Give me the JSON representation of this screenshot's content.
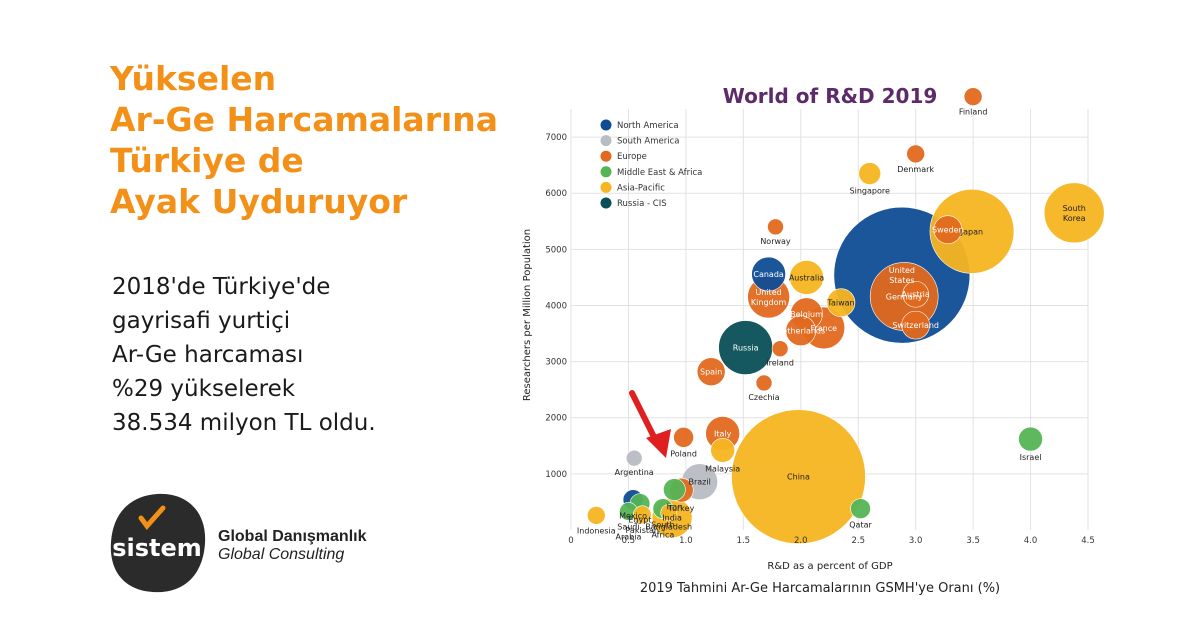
{
  "headline": {
    "lines": [
      "Yükselen",
      "Ar-Ge Harcamalarına",
      "Türkiye de",
      "Ayak Uyduruyor"
    ]
  },
  "body": {
    "lines": [
      "2018'de Türkiye'de",
      "gayrisafi yurtiçi",
      "Ar-Ge harcaması",
      "%29 yükselerek",
      "38.534 milyon TL oldu."
    ]
  },
  "logo": {
    "wordmark": "sistem",
    "name": "Global Danışmanlık",
    "tagline": "Global Consulting"
  },
  "colors": {
    "accent": "#f39018",
    "north_america": "#0f4c95",
    "south_america": "#b8bcc3",
    "europe": "#e2691e",
    "middle_east_africa": "#55b455",
    "asia_pacific": "#f7b521",
    "russia_cis": "#0a4f57"
  },
  "chart_data": {
    "type": "scatter",
    "title": "World of R&D 2019",
    "xlabel": "R&D as a percent of GDP",
    "ylabel": "Researchers per Million Population",
    "caption": "2019 Tahmini Ar-Ge Harcamalarının GSMH'ye Oranı (%)",
    "xlim": [
      0,
      4.5
    ],
    "ylim": [
      0,
      7500
    ],
    "x_ticks": [
      "0",
      "0.5",
      "1.0",
      "1.5",
      "2.0",
      "2.5",
      "3.0",
      "3.5",
      "4.0",
      "4.5"
    ],
    "y_ticks": [
      "1000",
      "2000",
      "3000",
      "4000",
      "5000",
      "6000",
      "7000"
    ],
    "legend_position": "top-left",
    "grid": true,
    "legend": [
      {
        "name": "North America",
        "color": "#0f4c95"
      },
      {
        "name": "South America",
        "color": "#b8bcc3"
      },
      {
        "name": "Europe",
        "color": "#e2691e"
      },
      {
        "name": "Middle East & Africa",
        "color": "#55b455"
      },
      {
        "name": "Asia-Pacific",
        "color": "#f7b521"
      },
      {
        "name": "Russia - CIS",
        "color": "#0a4f57"
      }
    ],
    "points": [
      {
        "label": "China",
        "x": 1.98,
        "y": 950,
        "r": 67,
        "color": "#f7b521"
      },
      {
        "label": "United States",
        "x": 2.88,
        "y": 4540,
        "r": 68,
        "color": "#0f4c95"
      },
      {
        "label": "Japan",
        "x": 3.49,
        "y": 5320,
        "r": 42,
        "color": "#f7b521"
      },
      {
        "label": "Germany",
        "x": 2.9,
        "y": 4160,
        "r": 34,
        "color": "#e2691e"
      },
      {
        "label": "South Korea",
        "x": 4.38,
        "y": 5650,
        "r": 30,
        "color": "#f7b521"
      },
      {
        "label": "Russia",
        "x": 1.52,
        "y": 3250,
        "r": 27,
        "color": "#0a4f57"
      },
      {
        "label": "United Kingdom",
        "x": 1.72,
        "y": 4150,
        "r": 21,
        "color": "#e2691e"
      },
      {
        "label": "France",
        "x": 2.2,
        "y": 3600,
        "r": 21,
        "color": "#e2691e"
      },
      {
        "label": "Brazil",
        "x": 1.12,
        "y": 860,
        "r": 18,
        "color": "#b8bcc3"
      },
      {
        "label": "India",
        "x": 0.88,
        "y": 220,
        "r": 20,
        "color": "#f7b521"
      },
      {
        "label": "Canada",
        "x": 1.72,
        "y": 4560,
        "r": 17,
        "color": "#0f4c95"
      },
      {
        "label": "Italy",
        "x": 1.32,
        "y": 1720,
        "r": 17,
        "color": "#e2691e"
      },
      {
        "label": "Australia",
        "x": 2.05,
        "y": 4500,
        "r": 17,
        "color": "#f7b521"
      },
      {
        "label": "Belgium",
        "x": 2.05,
        "y": 3850,
        "r": 16,
        "color": "#e2691e"
      },
      {
        "label": "Netherlands",
        "x": 2.0,
        "y": 3550,
        "r": 15,
        "color": "#e2691e"
      },
      {
        "label": "Spain",
        "x": 1.22,
        "y": 2820,
        "r": 14,
        "color": "#e2691e"
      },
      {
        "label": "Taiwan",
        "x": 2.35,
        "y": 4050,
        "r": 14,
        "color": "#f7b521"
      },
      {
        "label": "Switzerland",
        "x": 3.0,
        "y": 3650,
        "r": 14,
        "color": "#e2691e"
      },
      {
        "label": "Sweden",
        "x": 3.28,
        "y": 5350,
        "r": 14,
        "color": "#e2691e"
      },
      {
        "label": "Austria",
        "x": 3.0,
        "y": 4200,
        "r": 13,
        "color": "#e2691e"
      },
      {
        "label": "Malaysia",
        "x": 1.32,
        "y": 1420,
        "r": 12,
        "color": "#f7b521"
      },
      {
        "label": "Turkey",
        "x": 0.96,
        "y": 710,
        "r": 12,
        "color": "#e2691e"
      },
      {
        "label": "Iran",
        "x": 0.9,
        "y": 720,
        "r": 11,
        "color": "#55b455"
      },
      {
        "label": "Mexico",
        "x": 0.54,
        "y": 540,
        "r": 10,
        "color": "#0f4c95"
      },
      {
        "label": "Egypt",
        "x": 0.6,
        "y": 470,
        "r": 10,
        "color": "#55b455"
      },
      {
        "label": "South Africa",
        "x": 0.8,
        "y": 380,
        "r": 10,
        "color": "#55b455"
      },
      {
        "label": "Israel",
        "x": 4.0,
        "y": 1620,
        "r": 12,
        "color": "#55b455"
      },
      {
        "label": "Singapore",
        "x": 2.6,
        "y": 6350,
        "r": 11,
        "color": "#f7b521"
      },
      {
        "label": "Finland",
        "x": 3.5,
        "y": 7720,
        "r": 9,
        "color": "#e2691e"
      },
      {
        "label": "Denmark",
        "x": 3.0,
        "y": 6700,
        "r": 9,
        "color": "#e2691e"
      },
      {
        "label": "Norway",
        "x": 1.78,
        "y": 5400,
        "r": 8,
        "color": "#e2691e"
      },
      {
        "label": "Ireland",
        "x": 1.82,
        "y": 3230,
        "r": 8,
        "color": "#e2691e"
      },
      {
        "label": "Czechia",
        "x": 1.68,
        "y": 2620,
        "r": 8,
        "color": "#e2691e"
      },
      {
        "label": "Poland",
        "x": 0.98,
        "y": 1650,
        "r": 10,
        "color": "#e2691e"
      },
      {
        "label": "Argentina",
        "x": 0.55,
        "y": 1280,
        "r": 8,
        "color": "#b8bcc3"
      },
      {
        "label": "Saudi Arabia",
        "x": 0.5,
        "y": 330,
        "r": 9,
        "color": "#55b455"
      },
      {
        "label": "Indonesia",
        "x": 0.22,
        "y": 260,
        "r": 9,
        "color": "#f7b521"
      },
      {
        "label": "Pakistan",
        "x": 0.62,
        "y": 270,
        "r": 9,
        "color": "#f7b521"
      },
      {
        "label": "Bangladesh",
        "x": 0.85,
        "y": 310,
        "r": 8,
        "color": "#f7b521"
      },
      {
        "label": "Qatar",
        "x": 2.52,
        "y": 380,
        "r": 10,
        "color": "#55b455"
      }
    ]
  }
}
